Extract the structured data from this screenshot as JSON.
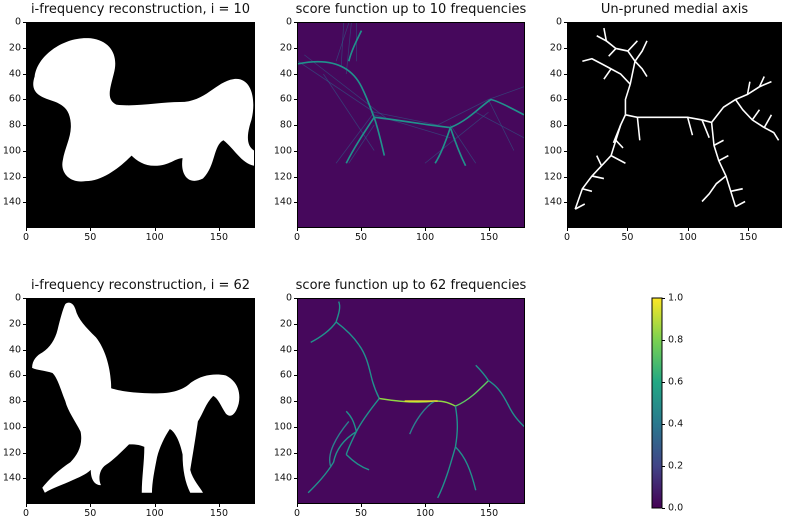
{
  "chart_data": [
    {
      "type": "heatmap",
      "title": "i-frequency reconstruction, i = 10",
      "x_ticks": [
        "0",
        "50",
        "100",
        "150"
      ],
      "y_ticks": [
        "0",
        "20",
        "40",
        "60",
        "80",
        "100",
        "120",
        "140"
      ],
      "xlim": [
        0,
        178
      ],
      "ylim": [
        160,
        0
      ],
      "colormap": "binary",
      "content": "horse silhouette (low-frequency reconstruction)"
    },
    {
      "type": "heatmap",
      "title": "score function up to 10 frequencies",
      "x_ticks": [
        "0",
        "50",
        "100",
        "150"
      ],
      "y_ticks": [
        "0",
        "20",
        "40",
        "60",
        "80",
        "100",
        "120",
        "140"
      ],
      "xlim": [
        0,
        178
      ],
      "ylim": [
        160,
        0
      ],
      "colormap": "viridis"
    },
    {
      "type": "heatmap",
      "title": "Un-pruned medial axis",
      "x_ticks": [
        "0",
        "50",
        "100",
        "150"
      ],
      "y_ticks": [
        "0",
        "20",
        "40",
        "60",
        "80",
        "100",
        "120",
        "140"
      ],
      "xlim": [
        0,
        178
      ],
      "ylim": [
        160,
        0
      ],
      "colormap": "gray"
    },
    {
      "type": "heatmap",
      "title": "i-frequency reconstruction, i = 62",
      "x_ticks": [
        "0",
        "50",
        "100",
        "150"
      ],
      "y_ticks": [
        "0",
        "20",
        "40",
        "60",
        "80",
        "100",
        "120",
        "140"
      ],
      "xlim": [
        0,
        178
      ],
      "ylim": [
        160,
        0
      ],
      "colormap": "binary"
    },
    {
      "type": "heatmap",
      "title": "score function up to 62 frequencies",
      "x_ticks": [
        "0",
        "50",
        "100",
        "150"
      ],
      "y_ticks": [
        "0",
        "20",
        "40",
        "60",
        "80",
        "100",
        "120",
        "140"
      ],
      "xlim": [
        0,
        178
      ],
      "ylim": [
        160,
        0
      ],
      "colormap": "viridis"
    }
  ],
  "colorbar": {
    "ticks": [
      "0.0",
      "0.2",
      "0.4",
      "0.6",
      "0.8",
      "1.0"
    ],
    "range": [
      0.0,
      1.0
    ],
    "colormap": "viridis"
  },
  "colors": {
    "viridis_low": "#440154",
    "viridis_bg": "#46085c",
    "viridis_mid": "#21918c",
    "viridis_high": "#fde725",
    "mask_bg": "#000000",
    "mask_fg": "#ffffff"
  }
}
